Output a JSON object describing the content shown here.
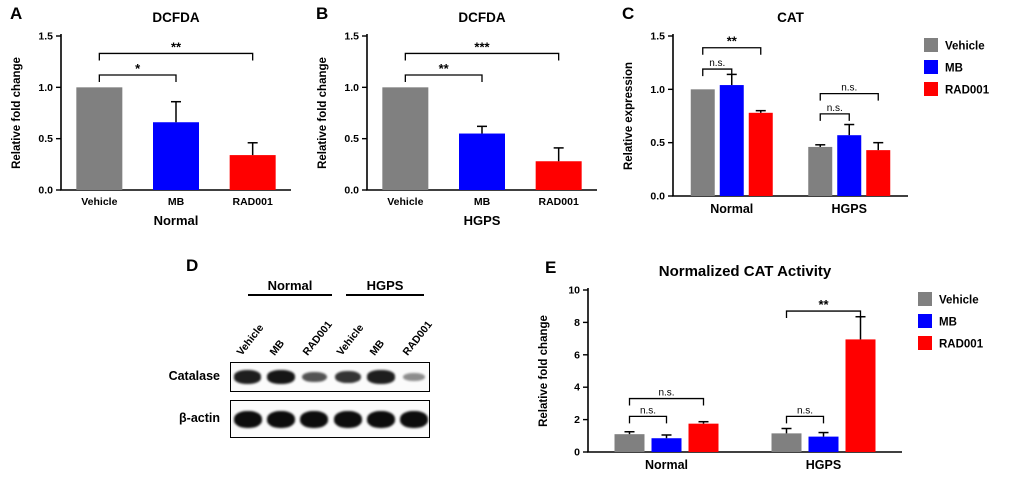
{
  "panels": {
    "a": "A",
    "b": "B",
    "c": "C",
    "d": "D",
    "e": "E"
  },
  "colors": {
    "vehicle": "#808080",
    "mb": "#0000ff",
    "rad001": "#ff0000"
  },
  "chart_data": [
    {
      "id": "A",
      "type": "bar",
      "title": "DCFDA",
      "ylabel": "Relative fold change",
      "xlabel": "Normal",
      "ylim": [
        0,
        1.5
      ],
      "yticks": [
        "0.0",
        "0.5",
        "1.0",
        "1.5"
      ],
      "categories": [
        "Vehicle",
        "MB",
        "RAD001"
      ],
      "values": [
        1.0,
        0.66,
        0.34
      ],
      "errors": [
        0,
        0.2,
        0.12
      ],
      "bar_colors": [
        "#808080",
        "#0000ff",
        "#ff0000"
      ],
      "significance": [
        {
          "from": 0,
          "to": 1,
          "label": "*",
          "y": 1.12
        },
        {
          "from": 0,
          "to": 2,
          "label": "**",
          "y": 1.33
        }
      ]
    },
    {
      "id": "B",
      "type": "bar",
      "title": "DCFDA",
      "ylabel": "Relative fold change",
      "xlabel": "HGPS",
      "ylim": [
        0,
        1.5
      ],
      "yticks": [
        "0.0",
        "0.5",
        "1.0",
        "1.5"
      ],
      "categories": [
        "Vehicle",
        "MB",
        "RAD001"
      ],
      "values": [
        1.0,
        0.55,
        0.28
      ],
      "errors": [
        0,
        0.07,
        0.13
      ],
      "bar_colors": [
        "#808080",
        "#0000ff",
        "#ff0000"
      ],
      "significance": [
        {
          "from": 0,
          "to": 1,
          "label": "**",
          "y": 1.12
        },
        {
          "from": 0,
          "to": 2,
          "label": "***",
          "y": 1.33
        }
      ]
    },
    {
      "id": "C",
      "type": "grouped_bar",
      "title": "CAT",
      "ylabel": "Relative expression",
      "ylim": [
        0,
        1.5
      ],
      "yticks": [
        "0.0",
        "0.5",
        "1.0",
        "1.5"
      ],
      "groups": [
        "Normal",
        "HGPS"
      ],
      "series": [
        {
          "name": "Vehicle",
          "color": "#808080",
          "values": [
            1.0,
            0.46
          ],
          "errors": [
            0,
            0.02
          ]
        },
        {
          "name": "MB",
          "color": "#0000ff",
          "values": [
            1.04,
            0.57
          ],
          "errors": [
            0.1,
            0.1
          ]
        },
        {
          "name": "RAD001",
          "color": "#ff0000",
          "values": [
            0.78,
            0.43
          ],
          "errors": [
            0.02,
            0.07
          ]
        }
      ],
      "legend_position": "right",
      "significance": [
        {
          "group": 0,
          "from": 0,
          "to": 1,
          "label": "n.s.",
          "y": 1.19
        },
        {
          "group": 0,
          "from": 0,
          "to": 2,
          "label": "**",
          "y": 1.39
        },
        {
          "group": 1,
          "from": 0,
          "to": 1,
          "label": "n.s.",
          "y": 0.77
        },
        {
          "group": 1,
          "from": 0,
          "to": 2,
          "label": "n.s.",
          "y": 0.96
        }
      ]
    },
    {
      "id": "E",
      "type": "grouped_bar",
      "title": "Normalized CAT Activity",
      "ylabel": "Relative fold change",
      "ylim": [
        0,
        10
      ],
      "yticks": [
        "0",
        "2",
        "4",
        "6",
        "8",
        "10"
      ],
      "groups": [
        "Normal",
        "HGPS"
      ],
      "series": [
        {
          "name": "Vehicle",
          "color": "#808080",
          "values": [
            1.1,
            1.15
          ],
          "errors": [
            0.15,
            0.3
          ]
        },
        {
          "name": "MB",
          "color": "#0000ff",
          "values": [
            0.85,
            0.95
          ],
          "errors": [
            0.2,
            0.25
          ]
        },
        {
          "name": "RAD001",
          "color": "#ff0000",
          "values": [
            1.75,
            6.95
          ],
          "errors": [
            0.12,
            1.4
          ]
        }
      ],
      "legend_position": "right",
      "significance": [
        {
          "group": 0,
          "from": 0,
          "to": 1,
          "label": "n.s.",
          "y": 2.2
        },
        {
          "group": 0,
          "from": 0,
          "to": 2,
          "label": "n.s.",
          "y": 3.3
        },
        {
          "group": 1,
          "from": 0,
          "to": 1,
          "label": "n.s.",
          "y": 2.2
        },
        {
          "group": 1,
          "from": 0,
          "to": 2,
          "label": "**",
          "y": 8.7
        }
      ]
    }
  ],
  "blot": {
    "group_headers": [
      "Normal",
      "HGPS"
    ],
    "lane_labels": [
      "Vehicle",
      "MB",
      "RAD001",
      "Vehicle",
      "MB",
      "RAD001"
    ],
    "rows": [
      {
        "label": "Catalase",
        "bands": [
          0.9,
          0.95,
          0.6,
          0.78,
          0.9,
          0.28
        ]
      },
      {
        "label": "β-actin",
        "bands": [
          1,
          1,
          1,
          1,
          1,
          1
        ]
      }
    ]
  }
}
